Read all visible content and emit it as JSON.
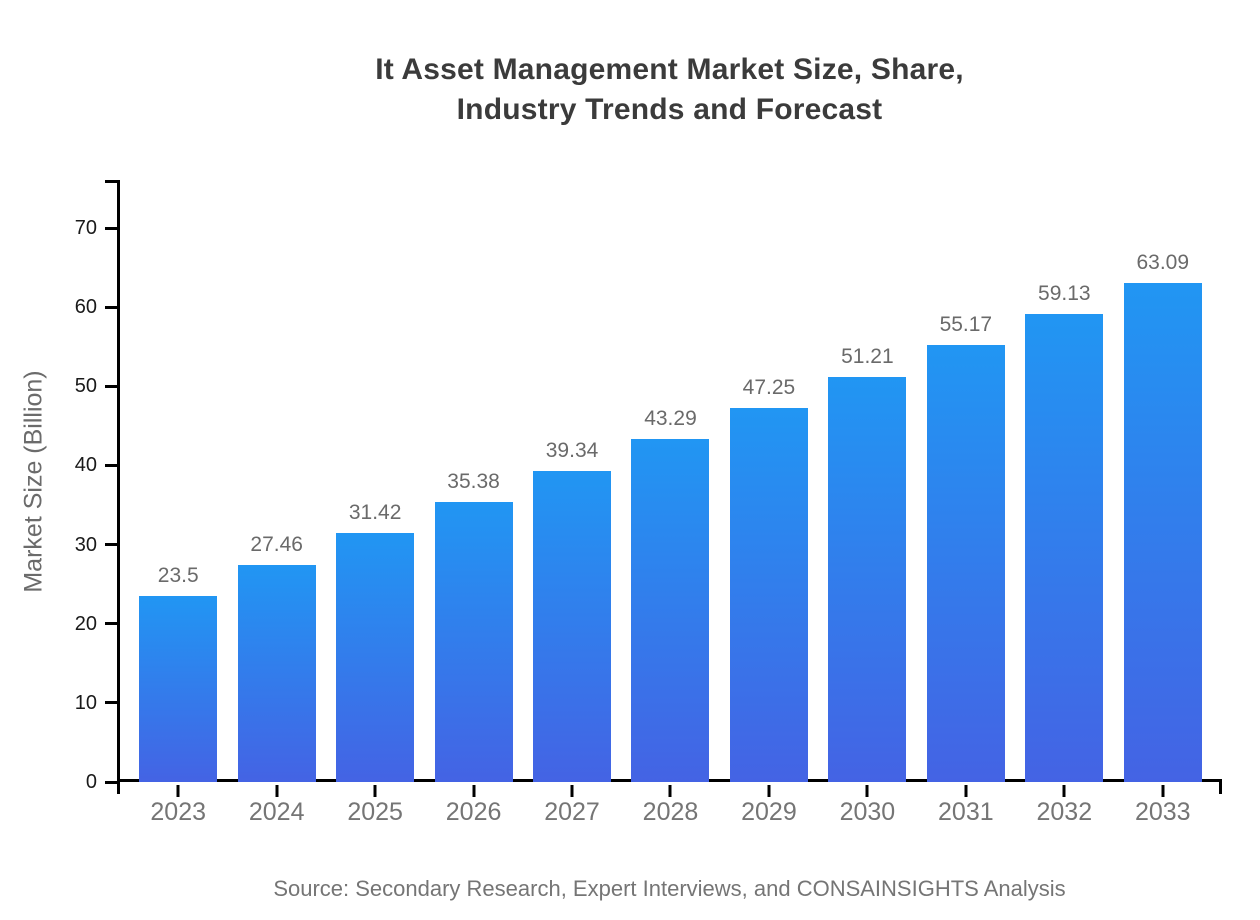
{
  "title": {
    "line1": "It Asset Management Market Size, Share,",
    "line2": "Industry Trends and Forecast"
  },
  "source_note": "Source: Secondary Research, Expert Interviews, and CONSAINSIGHTS Analysis",
  "chart_data": {
    "type": "bar",
    "title": "It Asset Management Market Size, Share, Industry Trends and Forecast",
    "categories": [
      "2023",
      "2024",
      "2025",
      "2026",
      "2027",
      "2028",
      "2029",
      "2030",
      "2031",
      "2032",
      "2033"
    ],
    "values": [
      23.5,
      27.46,
      31.42,
      35.38,
      39.34,
      43.29,
      47.25,
      51.21,
      55.17,
      59.13,
      63.09
    ],
    "value_labels": [
      "23.5",
      "27.46",
      "31.42",
      "35.38",
      "39.34",
      "43.29",
      "47.25",
      "51.21",
      "55.17",
      "59.13",
      "63.09"
    ],
    "xlabel": "",
    "ylabel": "Market Size (Billion)",
    "ylim": [
      0,
      70
    ],
    "yticks": [
      0,
      10,
      20,
      30,
      40,
      50,
      60,
      70
    ],
    "grid": false,
    "legend": "none",
    "colors": {
      "bar_gradient_top": "#2196F3",
      "bar_gradient_bottom": "#4463E4",
      "axis": "#000000",
      "title_text": "#3b3b3b",
      "value_label": "#6a6a6a",
      "axis_tick_label": "#1a1a1a",
      "category_label": "#757575",
      "source_text": "#757575"
    }
  }
}
